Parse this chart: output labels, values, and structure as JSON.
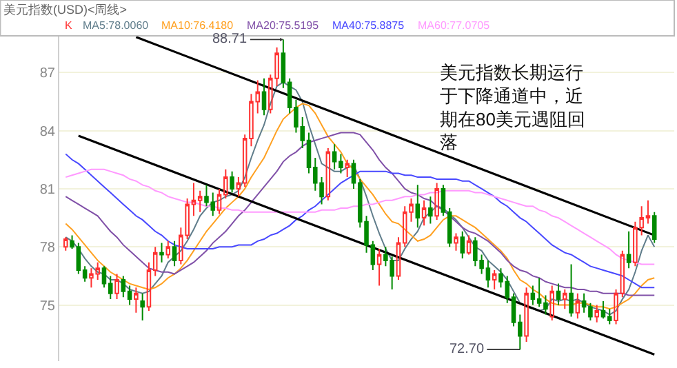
{
  "chart_data": {
    "type": "candlestick",
    "title": "美元指数(USD)<周线>",
    "categories": [
      null,
      null,
      null,
      null,
      null,
      null,
      null,
      null,
      null,
      null,
      null,
      null,
      null,
      null,
      null,
      null,
      null,
      null,
      null,
      null,
      null,
      null,
      null,
      null,
      null,
      null,
      null,
      null,
      null,
      null,
      null,
      null,
      null,
      null,
      null,
      null,
      null,
      null,
      null,
      null,
      null,
      null,
      null,
      null,
      null,
      null,
      null,
      null,
      null,
      null,
      null,
      null,
      null,
      null,
      null,
      null,
      null,
      null,
      null,
      null,
      null,
      null,
      null,
      null,
      null,
      null,
      null,
      null,
      null,
      null,
      null,
      null,
      null,
      null,
      null,
      null,
      null,
      null,
      null,
      null,
      null,
      null,
      null,
      null,
      null,
      null,
      null,
      null,
      null,
      null,
      null,
      null,
      null
    ],
    "ylim": [
      72.1,
      88.9
    ],
    "yticks": [
      75,
      78,
      81,
      84,
      87
    ],
    "grid": "y",
    "legend": "top left",
    "tick_labels": "y",
    "annotations": [
      "88.71",
      "72.70",
      "美元指数长期运行于下降通道中，近期在80美元遇阻回落"
    ],
    "series": [
      {
        "name": "K",
        "ohlc": [
          [
            78.0,
            78.5,
            77.8,
            78.4
          ],
          [
            78.3,
            78.6,
            77.9,
            78.0
          ],
          [
            78.0,
            78.2,
            76.6,
            76.8
          ],
          [
            76.8,
            77.0,
            76.2,
            76.4
          ],
          [
            76.4,
            76.9,
            75.9,
            76.6
          ],
          [
            76.6,
            77.2,
            76.3,
            76.9
          ],
          [
            76.9,
            77.0,
            75.9,
            76.1
          ],
          [
            76.1,
            76.5,
            75.3,
            75.6
          ],
          [
            75.6,
            76.6,
            75.3,
            76.3
          ],
          [
            76.3,
            76.5,
            75.4,
            75.7
          ],
          [
            75.7,
            76.0,
            75.0,
            75.3
          ],
          [
            75.3,
            75.9,
            74.6,
            75.6
          ],
          [
            75.2,
            75.6,
            74.2,
            74.9
          ],
          [
            74.9,
            77.2,
            74.7,
            76.8
          ],
          [
            76.8,
            78.0,
            76.5,
            77.7
          ],
          [
            77.7,
            78.2,
            77.2,
            77.6
          ],
          [
            77.6,
            78.3,
            77.4,
            78.0
          ],
          [
            78.0,
            78.3,
            77.0,
            77.3
          ],
          [
            77.3,
            79.0,
            77.1,
            78.6
          ],
          [
            78.6,
            80.5,
            78.4,
            80.2
          ],
          [
            80.2,
            81.3,
            79.6,
            80.4
          ],
          [
            80.4,
            80.9,
            79.8,
            80.6
          ],
          [
            80.6,
            81.2,
            80.1,
            80.3
          ],
          [
            80.3,
            80.8,
            79.6,
            79.9
          ],
          [
            79.9,
            81.0,
            79.7,
            80.7
          ],
          [
            80.7,
            82.0,
            80.5,
            81.6
          ],
          [
            81.6,
            81.9,
            80.8,
            81.0
          ],
          [
            81.0,
            81.6,
            80.6,
            81.3
          ],
          [
            81.3,
            83.8,
            81.1,
            83.6
          ],
          [
            83.6,
            85.9,
            83.2,
            85.5
          ],
          [
            85.5,
            86.6,
            84.9,
            86.0
          ],
          [
            86.0,
            86.7,
            84.8,
            85.1
          ],
          [
            85.1,
            86.9,
            84.9,
            86.7
          ],
          [
            86.7,
            88.3,
            86.3,
            88.0
          ],
          [
            88.0,
            88.71,
            86.2,
            86.5
          ],
          [
            86.5,
            86.7,
            84.9,
            85.2
          ],
          [
            85.2,
            85.6,
            83.9,
            84.2
          ],
          [
            84.2,
            84.7,
            83.1,
            83.5
          ],
          [
            83.5,
            83.9,
            81.8,
            82.1
          ],
          [
            82.1,
            82.6,
            80.9,
            81.3
          ],
          [
            81.3,
            81.6,
            80.2,
            80.6
          ],
          [
            80.6,
            83.1,
            80.4,
            82.9
          ],
          [
            82.9,
            83.3,
            82.0,
            82.4
          ],
          [
            82.4,
            82.8,
            81.8,
            82.1
          ],
          [
            82.1,
            82.5,
            81.6,
            82.3
          ],
          [
            82.3,
            82.5,
            81.0,
            81.3
          ],
          [
            81.3,
            81.5,
            79.0,
            79.3
          ],
          [
            79.3,
            79.6,
            77.7,
            78.1
          ],
          [
            78.1,
            78.3,
            76.8,
            77.1
          ],
          [
            77.1,
            77.9,
            76.0,
            77.6
          ],
          [
            77.6,
            78.0,
            77.0,
            77.3
          ],
          [
            77.3,
            77.5,
            75.8,
            76.5
          ],
          [
            76.5,
            78.5,
            76.3,
            78.2
          ],
          [
            78.2,
            80.1,
            78.0,
            79.8
          ],
          [
            79.8,
            80.5,
            79.3,
            80.2
          ],
          [
            80.2,
            81.2,
            79.0,
            79.5
          ],
          [
            79.5,
            80.4,
            79.1,
            80.0
          ],
          [
            80.0,
            80.6,
            79.2,
            79.6
          ],
          [
            79.6,
            81.3,
            79.4,
            81.0
          ],
          [
            81.0,
            81.2,
            79.6,
            79.8
          ],
          [
            79.8,
            80.0,
            78.0,
            78.2
          ],
          [
            78.2,
            78.7,
            77.8,
            78.5
          ],
          [
            78.5,
            78.8,
            77.4,
            77.7
          ],
          [
            77.7,
            78.6,
            77.6,
            78.3
          ],
          [
            78.3,
            78.5,
            77.0,
            77.3
          ],
          [
            77.3,
            77.6,
            76.6,
            76.9
          ],
          [
            76.9,
            77.3,
            75.9,
            76.3
          ],
          [
            76.3,
            76.8,
            75.8,
            76.6
          ],
          [
            76.6,
            76.9,
            75.9,
            76.2
          ],
          [
            76.2,
            76.5,
            75.1,
            75.4
          ],
          [
            75.4,
            75.6,
            73.9,
            74.1
          ],
          [
            74.1,
            74.5,
            72.7,
            73.4
          ],
          [
            73.4,
            75.9,
            73.1,
            75.6
          ],
          [
            75.6,
            76.0,
            75.0,
            75.3
          ],
          [
            75.3,
            76.4,
            74.9,
            75.1
          ],
          [
            75.1,
            75.5,
            74.5,
            74.8
          ],
          [
            74.4,
            76.0,
            74.2,
            75.7
          ],
          [
            75.7,
            76.1,
            75.0,
            75.3
          ],
          [
            75.3,
            75.8,
            74.8,
            75.6
          ],
          [
            75.6,
            77.1,
            74.4,
            74.6
          ],
          [
            74.6,
            75.6,
            74.3,
            75.2
          ],
          [
            75.2,
            75.6,
            74.6,
            74.9
          ],
          [
            74.9,
            75.1,
            74.2,
            74.4
          ],
          [
            74.4,
            75.0,
            74.1,
            74.7
          ],
          [
            74.7,
            75.2,
            74.3,
            74.4
          ],
          [
            74.4,
            74.8,
            74.0,
            74.2
          ],
          [
            74.2,
            75.8,
            74.0,
            75.6
          ],
          [
            75.6,
            77.8,
            75.4,
            77.6
          ],
          [
            77.6,
            78.8,
            76.9,
            77.2
          ],
          [
            77.2,
            79.3,
            77.0,
            79.0
          ],
          [
            79.0,
            80.1,
            78.6,
            79.5
          ],
          [
            79.5,
            80.4,
            79.2,
            79.6
          ],
          [
            79.6,
            79.8,
            78.2,
            78.4
          ]
        ]
      },
      {
        "type": "line",
        "name": "MA5:78.0060",
        "color": "#607d8b",
        "values": [
          78.5,
          78.3,
          77.9,
          77.4,
          77.0,
          76.7,
          76.6,
          76.3,
          76.3,
          76.1,
          75.8,
          75.7,
          75.6,
          75.7,
          76.1,
          76.5,
          77.2,
          77.5,
          77.8,
          78.3,
          78.9,
          79.6,
          80.0,
          80.3,
          80.4,
          80.6,
          80.7,
          80.9,
          81.6,
          82.6,
          83.5,
          84.3,
          85.4,
          86.3,
          86.5,
          86.3,
          86.1,
          85.5,
          84.3,
          83.3,
          82.3,
          82.1,
          81.9,
          81.9,
          82.1,
          82.2,
          81.5,
          80.6,
          79.6,
          78.7,
          77.9,
          77.3,
          77.3,
          77.9,
          78.4,
          78.8,
          79.5,
          79.8,
          80.1,
          80.0,
          79.7,
          79.4,
          79.0,
          78.5,
          78.0,
          77.8,
          77.3,
          77.0,
          76.7,
          76.3,
          75.7,
          75.1,
          74.9,
          74.8,
          74.7,
          74.8,
          75.3,
          75.2,
          75.3,
          75.2,
          75.3,
          75.1,
          74.9,
          74.8,
          74.7,
          74.5,
          74.7,
          75.3,
          75.8,
          76.7,
          77.8,
          78.6,
          78.0
        ]
      },
      {
        "type": "line",
        "name": "MA10:76.4180",
        "color": "#ffa020",
        "values": [
          79.2,
          78.9,
          78.5,
          78.1,
          77.7,
          77.3,
          77.0,
          76.7,
          76.5,
          76.3,
          76.1,
          76.0,
          75.9,
          75.8,
          75.9,
          76.1,
          76.4,
          76.6,
          76.9,
          77.3,
          77.8,
          78.3,
          78.8,
          79.2,
          79.6,
          80.0,
          80.3,
          80.6,
          81.0,
          81.6,
          82.1,
          82.6,
          83.3,
          84.0,
          84.6,
          84.9,
          85.2,
          85.4,
          85.3,
          84.9,
          84.3,
          83.7,
          83.3,
          82.9,
          82.3,
          82.0,
          81.5,
          81.1,
          80.7,
          80.2,
          79.7,
          79.3,
          79.2,
          78.9,
          78.6,
          78.3,
          78.4,
          78.6,
          79.0,
          79.4,
          79.6,
          79.6,
          79.4,
          79.2,
          79.0,
          78.7,
          78.4,
          78.1,
          77.8,
          77.4,
          76.8,
          76.3,
          76.1,
          75.8,
          75.6,
          75.3,
          75.1,
          75.0,
          75.0,
          75.0,
          75.1,
          75.1,
          75.0,
          74.9,
          74.9,
          74.8,
          74.9,
          75.1,
          75.3,
          75.6,
          76.0,
          76.3,
          76.4
        ]
      },
      {
        "type": "line",
        "name": "MA20:75.5195",
        "color": "#8050a8",
        "values": [
          80.6,
          80.4,
          80.2,
          80.0,
          79.8,
          79.6,
          79.2,
          78.8,
          78.5,
          78.1,
          77.8,
          77.5,
          77.2,
          76.9,
          76.8,
          76.7,
          76.7,
          76.6,
          76.8,
          77.0,
          77.2,
          77.5,
          77.8,
          78.2,
          78.5,
          78.8,
          79.2,
          79.6,
          79.9,
          80.3,
          80.7,
          81.1,
          81.5,
          81.9,
          82.4,
          82.7,
          82.9,
          83.2,
          83.4,
          83.5,
          83.6,
          83.7,
          83.8,
          83.9,
          83.9,
          83.9,
          83.8,
          83.4,
          83.0,
          82.5,
          82.1,
          81.8,
          81.4,
          81.0,
          80.8,
          80.7,
          80.5,
          80.4,
          80.1,
          79.9,
          79.6,
          79.3,
          79.0,
          78.8,
          78.7,
          78.5,
          78.3,
          78.0,
          77.7,
          77.3,
          77.0,
          76.8,
          76.7,
          76.5,
          76.4,
          76.2,
          76.1,
          76.0,
          75.9,
          75.9,
          75.8,
          75.8,
          75.7,
          75.7,
          75.6,
          75.6,
          75.6,
          75.6,
          75.5,
          75.5,
          75.5,
          75.5,
          75.5
        ]
      },
      {
        "type": "line",
        "name": "MA40:75.8875",
        "color": "#4848ff",
        "values": [
          82.8,
          82.5,
          82.3,
          82.0,
          81.7,
          81.4,
          81.1,
          80.8,
          80.5,
          80.2,
          79.9,
          79.6,
          79.4,
          79.1,
          78.8,
          78.6,
          78.3,
          78.1,
          78.0,
          77.9,
          77.9,
          77.9,
          77.9,
          77.9,
          78.0,
          78.0,
          78.0,
          78.1,
          78.1,
          78.1,
          78.3,
          78.4,
          78.6,
          78.7,
          78.9,
          79.1,
          79.4,
          79.6,
          79.9,
          80.1,
          80.4,
          80.7,
          81.0,
          81.3,
          81.5,
          81.7,
          81.9,
          81.9,
          81.9,
          81.9,
          81.9,
          81.8,
          81.8,
          81.7,
          81.7,
          81.6,
          81.6,
          81.6,
          81.5,
          81.5,
          81.5,
          81.5,
          81.4,
          81.4,
          81.2,
          81.0,
          80.8,
          80.6,
          80.3,
          80.1,
          79.8,
          79.5,
          79.3,
          79.0,
          78.7,
          78.4,
          78.1,
          77.9,
          77.7,
          77.6,
          77.4,
          77.2,
          77.0,
          76.9,
          76.8,
          76.7,
          76.6,
          76.5,
          76.3,
          76.1,
          75.9,
          75.9,
          75.9
        ]
      },
      {
        "type": "line",
        "name": "MA60:77.0705",
        "color": "#ff99ff",
        "values": [
          81.6,
          81.7,
          81.8,
          81.9,
          82.0,
          82.0,
          82.0,
          81.9,
          81.8,
          81.7,
          81.5,
          81.4,
          81.2,
          81.1,
          80.9,
          80.8,
          80.6,
          80.5,
          80.4,
          80.3,
          80.3,
          80.2,
          80.1,
          80.1,
          80.0,
          80.0,
          79.9,
          79.9,
          79.8,
          79.8,
          79.8,
          79.8,
          79.8,
          79.8,
          79.8,
          79.8,
          79.8,
          79.8,
          79.8,
          79.8,
          79.9,
          79.9,
          79.9,
          80.0,
          80.0,
          80.1,
          80.1,
          80.2,
          80.2,
          80.3,
          80.4,
          80.4,
          80.5,
          80.6,
          80.6,
          80.7,
          80.7,
          80.8,
          80.8,
          80.9,
          80.9,
          80.9,
          80.9,
          80.9,
          80.8,
          80.8,
          80.7,
          80.6,
          80.5,
          80.4,
          80.3,
          80.2,
          80.1,
          80.1,
          79.9,
          79.8,
          79.6,
          79.5,
          79.3,
          79.1,
          78.9,
          78.7,
          78.5,
          78.3,
          78.1,
          77.9,
          77.6,
          77.4,
          77.3,
          77.2,
          77.1,
          77.1,
          77.1
        ]
      },
      {
        "type": "line",
        "color": "#000000",
        "values": [
          null,
          null,
          null,
          null,
          null,
          null,
          null,
          null,
          null,
          null,
          null,
          88.84,
          null,
          null,
          null,
          null,
          null,
          null,
          null,
          null,
          null,
          null,
          null,
          null,
          null,
          null,
          null,
          null,
          null,
          null,
          null,
          null,
          null,
          null,
          null,
          null,
          null,
          null,
          null,
          null,
          null,
          null,
          null,
          null,
          null,
          null,
          null,
          null,
          null,
          null,
          null,
          null,
          null,
          null,
          null,
          null,
          null,
          null,
          null,
          null,
          null,
          null,
          null,
          null,
          null,
          null,
          null,
          null,
          null,
          null,
          null,
          null,
          null,
          null,
          null,
          null,
          null,
          null,
          null,
          null,
          null,
          null,
          null,
          null,
          null,
          null,
          null,
          null,
          null,
          null,
          null,
          null,
          78.6
        ]
      },
      {
        "type": "line",
        "color": "#000000",
        "values": [
          null,
          null,
          83.74,
          null,
          null,
          null,
          null,
          null,
          null,
          null,
          null,
          null,
          null,
          null,
          null,
          null,
          null,
          null,
          null,
          null,
          null,
          null,
          null,
          null,
          null,
          null,
          null,
          null,
          null,
          null,
          null,
          null,
          null,
          null,
          null,
          null,
          null,
          null,
          null,
          null,
          null,
          null,
          null,
          null,
          null,
          null,
          null,
          null,
          null,
          null,
          null,
          null,
          null,
          null,
          null,
          null,
          null,
          null,
          null,
          null,
          null,
          null,
          null,
          null,
          null,
          null,
          null,
          null,
          null,
          null,
          null,
          null,
          null,
          null,
          null,
          null,
          null,
          null,
          null,
          null,
          null,
          null,
          null,
          null,
          null,
          null,
          null,
          null,
          null,
          null,
          null,
          null,
          72.44
        ]
      }
    ]
  }
}
